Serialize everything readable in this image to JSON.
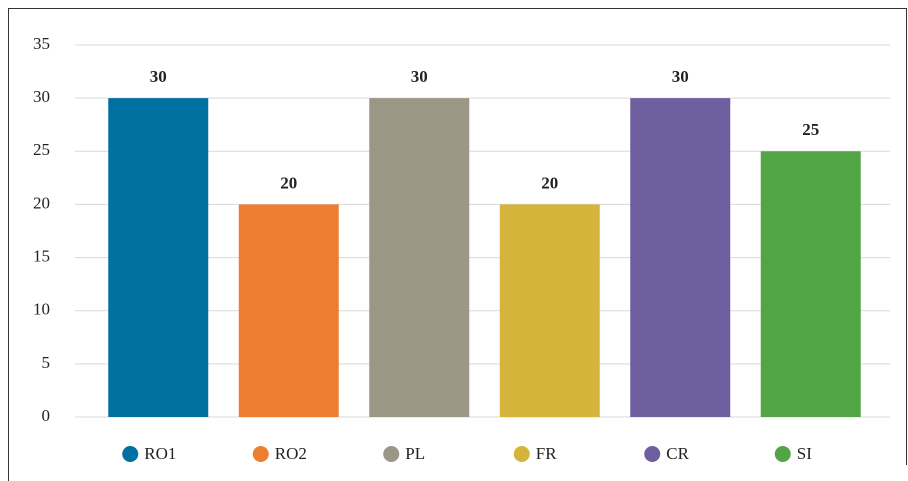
{
  "chart_data": {
    "type": "bar",
    "categories": [
      "RO1",
      "RO2",
      "PL",
      "FR",
      "CR",
      "SI"
    ],
    "values": [
      30,
      20,
      30,
      20,
      30,
      25
    ],
    "colors": [
      "#0070a0",
      "#ed7d31",
      "#9b9686",
      "#d5b43c",
      "#6d5fa0",
      "#52a544"
    ],
    "ylim": [
      0,
      35
    ],
    "yticks": [
      0,
      5,
      10,
      15,
      20,
      25,
      30,
      35
    ],
    "grid": true,
    "legend": "bottom",
    "data_labels": true
  }
}
